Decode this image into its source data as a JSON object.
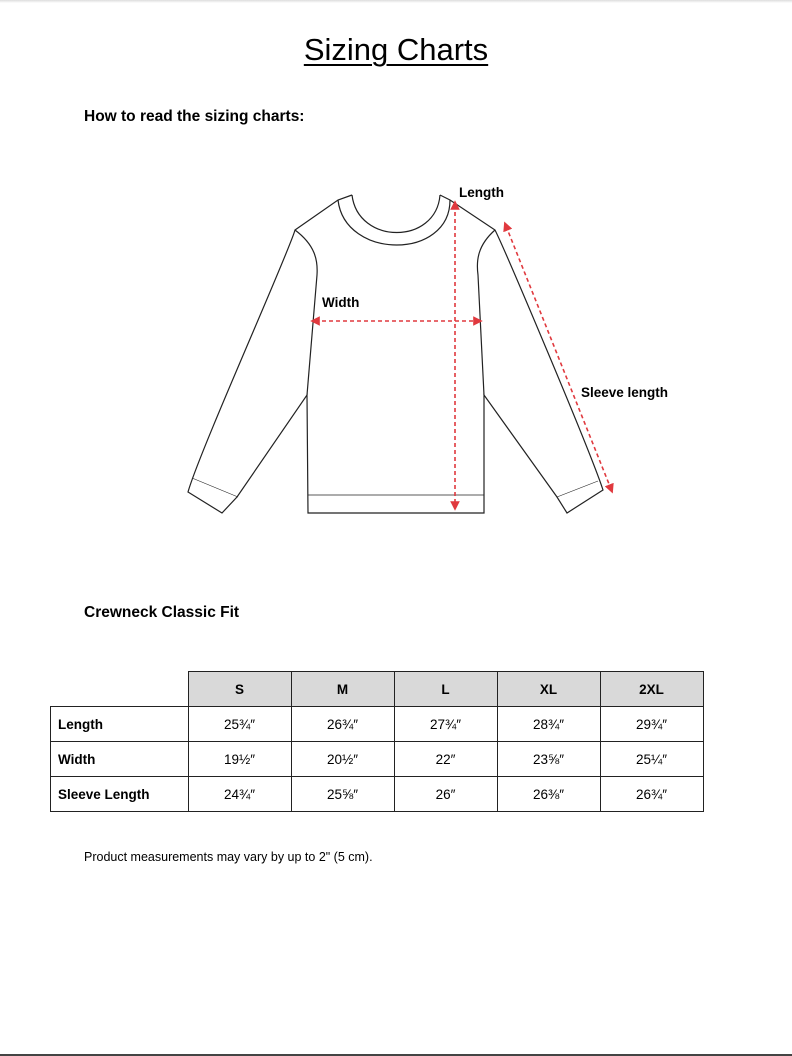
{
  "title": "Sizing Charts",
  "how_to_read": "How to read the sizing charts:",
  "diagram": {
    "length": "Length",
    "width": "Width",
    "sleeve": "Sleeve length",
    "arrow_color": "#e0393e"
  },
  "section": "Crewneck Classic Fit",
  "table": {
    "columns": [
      "S",
      "M",
      "L",
      "XL",
      "2XL"
    ],
    "rows": [
      {
        "label": "Length",
        "values": [
          "25¾″",
          "26¾″",
          "27¾″",
          "28¾″",
          "29¾″"
        ]
      },
      {
        "label": "Width",
        "values": [
          "19½″",
          "20½″",
          "22″",
          "23⅝″",
          "25¼″"
        ]
      },
      {
        "label": "Sleeve Length",
        "values": [
          "24¾″",
          "25⅝″",
          "26″",
          "26⅜″",
          "26¾″"
        ]
      }
    ]
  },
  "note": "Product measurements may vary by up to 2\" (5 cm)."
}
